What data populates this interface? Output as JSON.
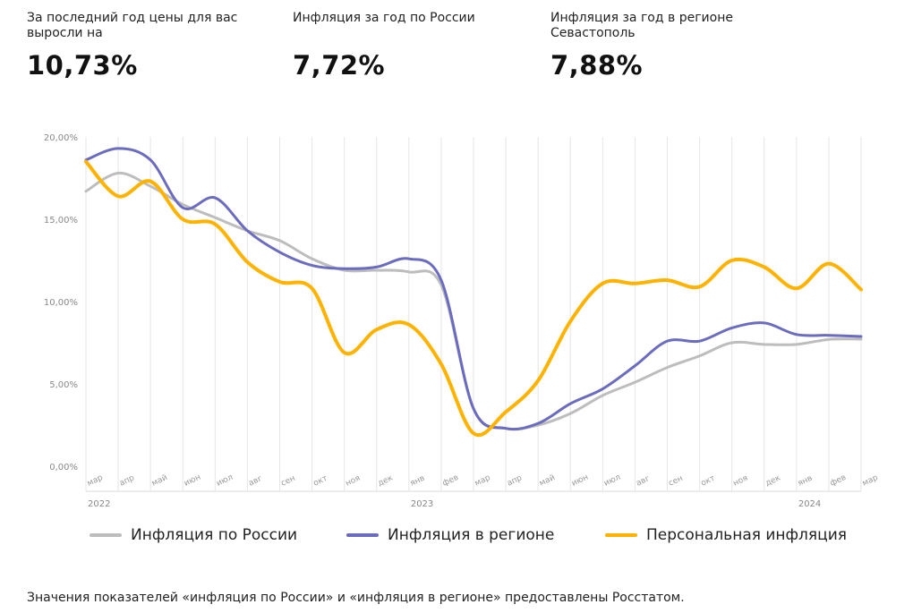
{
  "stats": [
    {
      "label": "За последний год цены для вас выросли на",
      "value": "10,73%"
    },
    {
      "label": "Инфляция за год по России",
      "value": "7,72%"
    },
    {
      "label": "Инфляция за год в регионе Севастополь",
      "value": "7,88%"
    }
  ],
  "colors": {
    "russia": "#bdbdbd",
    "region": "#6b6bbf",
    "personal": "#ffb300",
    "grid": "#e6e6e6",
    "tick": "#999999"
  },
  "chart_data": {
    "type": "line",
    "ylim": [
      0,
      20
    ],
    "yticks": [
      0,
      5,
      10,
      15,
      20
    ],
    "ytick_labels": [
      "0,00%",
      "5,00%",
      "10,00%",
      "15,00%",
      "20,00%"
    ],
    "grid": "vertical",
    "legend_position": "bottom",
    "categories": [
      "мар",
      "апр",
      "май",
      "июн",
      "июл",
      "авг",
      "сен",
      "окт",
      "ноя",
      "дек",
      "янв",
      "фев",
      "мар",
      "апр",
      "май",
      "июн",
      "июл",
      "авг",
      "сен",
      "окт",
      "ноя",
      "дек",
      "янв",
      "фев",
      "мар"
    ],
    "years": [
      {
        "label": "2022",
        "index": 0
      },
      {
        "label": "2023",
        "index": 10
      },
      {
        "label": "2024",
        "index": 22
      }
    ],
    "series": [
      {
        "name": "Инфляция по России",
        "color_key": "russia",
        "values": [
          16.7,
          17.8,
          17.0,
          15.9,
          15.1,
          14.3,
          13.7,
          12.6,
          11.9,
          11.9,
          11.8,
          11.0,
          3.5,
          2.3,
          2.5,
          3.2,
          4.3,
          5.1,
          6.0,
          6.7,
          7.5,
          7.4,
          7.4,
          7.7,
          7.72
        ]
      },
      {
        "name": "Инфляция в регионе",
        "color_key": "region",
        "values": [
          18.6,
          19.3,
          18.6,
          15.7,
          16.3,
          14.3,
          13.0,
          12.2,
          12.0,
          12.1,
          12.6,
          11.3,
          3.5,
          2.3,
          2.6,
          3.8,
          4.7,
          6.1,
          7.6,
          7.6,
          8.4,
          8.7,
          8.0,
          7.95,
          7.88
        ]
      },
      {
        "name": "Персональная инфляция",
        "color_key": "personal",
        "values": [
          18.5,
          16.4,
          17.3,
          15.0,
          14.7,
          12.4,
          11.2,
          10.8,
          6.9,
          8.3,
          8.6,
          6.2,
          2.0,
          3.3,
          5.2,
          8.8,
          11.1,
          11.1,
          11.3,
          10.9,
          12.5,
          12.1,
          10.8,
          12.3,
          10.73
        ]
      }
    ]
  },
  "note": "Значения показателей «инфляция по России» и «инфляция в регионе» предоставлены Росстатом."
}
